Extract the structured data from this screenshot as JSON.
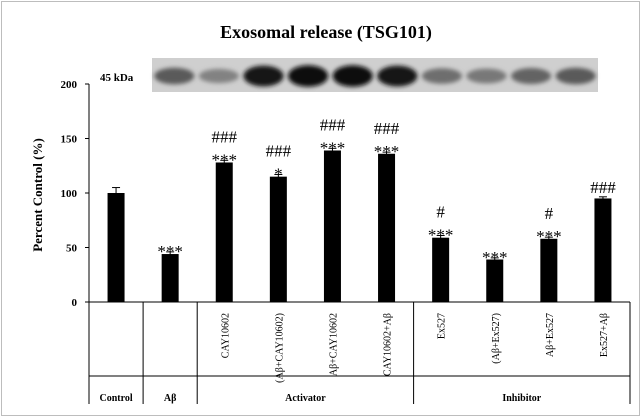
{
  "chart_data": {
    "type": "bar",
    "title": "Exosomal release (TSG101)",
    "ylabel": "Percent Control (%)",
    "xlabel": "",
    "ylim": [
      0,
      200
    ],
    "yticks": [
      0,
      50,
      100,
      150,
      200
    ],
    "blot_label": "45 kDa",
    "categories": [
      "Control",
      "Aβ",
      "CAY10602",
      "(Aβ+CAY10602)",
      "Aβ+CAY10602",
      "CAY10602+Aβ",
      "Ex527",
      "(Aβ+Ex527)",
      "Aβ+Ex527",
      "Ex527+Aβ"
    ],
    "values": [
      100,
      44,
      128,
      115,
      139,
      136,
      59,
      39,
      58,
      95
    ],
    "errors": [
      5,
      2,
      2,
      2,
      2,
      1.5,
      2,
      1.5,
      1.5,
      1.5
    ],
    "significance_vs_control": [
      "",
      "***",
      "***",
      "*",
      "***",
      "***",
      "***",
      "***",
      "***",
      ""
    ],
    "significance_vs_abeta": [
      "",
      "",
      "###",
      "###",
      "###",
      "###",
      "#",
      "",
      "#",
      "###"
    ],
    "groups": [
      {
        "label": "Control",
        "members": [
          0
        ]
      },
      {
        "label": "Aβ",
        "members": [
          1
        ]
      },
      {
        "label": "Activator",
        "members": [
          2,
          3,
          4,
          5
        ]
      },
      {
        "label": "Inhibitor",
        "members": [
          6,
          7,
          8,
          9
        ]
      }
    ],
    "blot_band_intensity": [
      0.55,
      0.35,
      0.9,
      0.95,
      0.95,
      0.9,
      0.45,
      0.4,
      0.5,
      0.55
    ],
    "bar_color": "#000000",
    "grid": false
  }
}
